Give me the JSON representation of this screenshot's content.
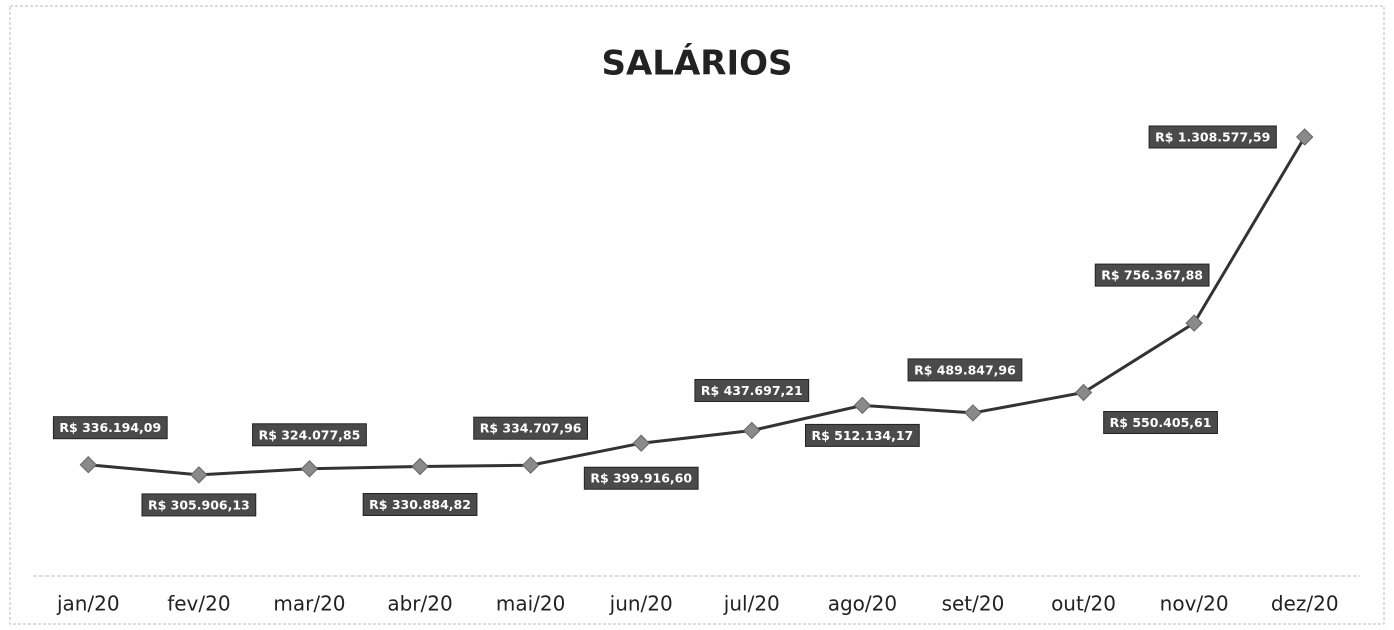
{
  "chart_data": {
    "type": "line",
    "title": "SALÁRIOS",
    "categories": [
      "jan/20",
      "fev/20",
      "mar/20",
      "abr/20",
      "mai/20",
      "jun/20",
      "jul/20",
      "ago/20",
      "set/20",
      "out/20",
      "nov/20",
      "dez/20"
    ],
    "values": [
      336194.09,
      305906.13,
      324077.85,
      330884.82,
      334707.96,
      399916.6,
      437697.21,
      512134.17,
      489847.96,
      550405.61,
      756367.88,
      1308577.59
    ],
    "value_labels": [
      "R$ 336.194,09",
      "R$ 305.906,13",
      "R$ 324.077,85",
      "R$ 330.884,82",
      "R$ 334.707,96",
      "R$ 399.916,60",
      "R$ 437.697,21",
      "R$ 512.134,17",
      "R$ 489.847,96",
      "R$ 550.405,61",
      "R$ 756.367,88",
      "R$ 1.308.577,59"
    ],
    "color": "#333333",
    "marker_color": "#8a8a8a"
  }
}
